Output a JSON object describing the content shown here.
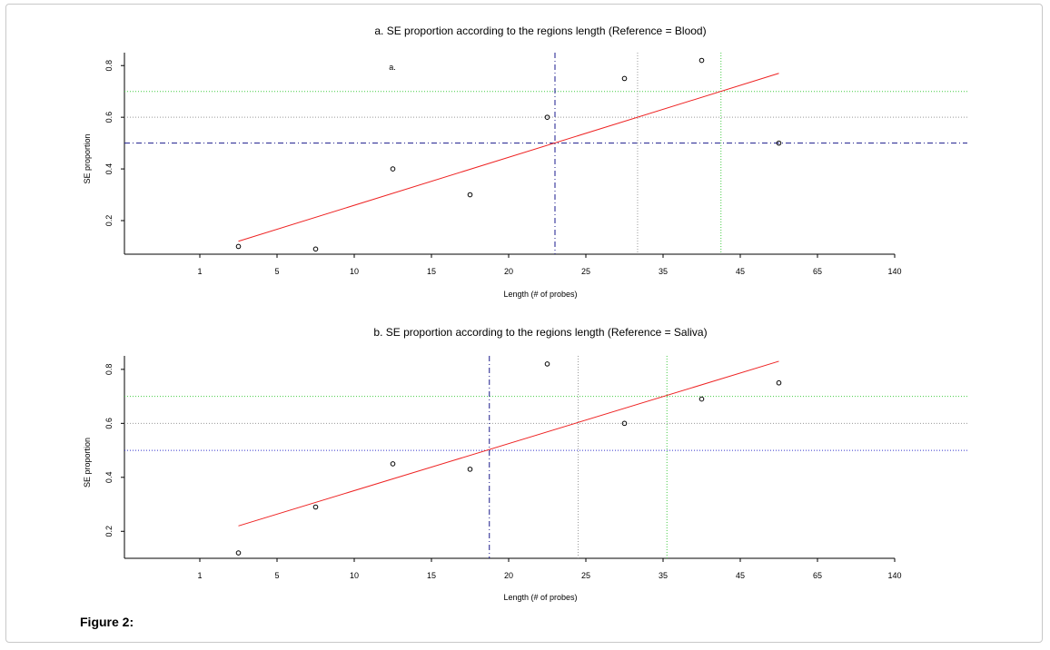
{
  "figure_caption": "Figure 2:",
  "chart_data": [
    {
      "type": "scatter",
      "title": "a. SE proportion according  to  the regions  length  (Reference  = Blood)",
      "xlabel": "Length (# of probes)",
      "ylabel": "SE proportion",
      "annotation": "a.",
      "categories": [
        "1",
        "5",
        "10",
        "15",
        "20",
        "25",
        "35",
        "45",
        "65",
        "140"
      ],
      "yticks": [
        0.2,
        0.4,
        0.6,
        0.8
      ],
      "ylim": [
        0.07,
        0.85
      ],
      "x": [
        1.5,
        2.5,
        3.5,
        4.5,
        5.5,
        6.5,
        7.5,
        8.5
      ],
      "y": [
        0.1,
        0.09,
        0.4,
        0.3,
        0.6,
        0.75,
        0.82,
        0.5
      ],
      "fit": {
        "x": [
          1.5,
          8.5
        ],
        "y": [
          0.12,
          0.77
        ]
      },
      "vlines": [
        {
          "x": 5.6,
          "color": "#1a1a8c",
          "style": "dashdot"
        },
        {
          "x": 6.67,
          "color": "#999999",
          "style": "dotted"
        },
        {
          "x": 7.75,
          "color": "#44cc44",
          "style": "dotted"
        }
      ],
      "hlines": [
        {
          "y": 0.5,
          "color": "#1a1a8c",
          "style": "dashdot"
        },
        {
          "y": 0.6,
          "color": "#999999",
          "style": "dotted"
        },
        {
          "y": 0.7,
          "color": "#44cc44",
          "style": "dotted"
        }
      ],
      "fit_color": "#ee2222",
      "grid": false
    },
    {
      "type": "scatter",
      "title": "b. SE proportion according  to  the regions  length  (Reference  = Saliva)",
      "xlabel": "Length (# of probes)",
      "ylabel": "SE proportion",
      "annotation": "",
      "categories": [
        "1",
        "5",
        "10",
        "15",
        "20",
        "25",
        "35",
        "45",
        "65",
        "140"
      ],
      "yticks": [
        0.2,
        0.4,
        0.6,
        0.8
      ],
      "ylim": [
        0.1,
        0.85
      ],
      "x": [
        1.5,
        2.5,
        3.5,
        4.5,
        5.5,
        6.5,
        7.5,
        8.5
      ],
      "y": [
        0.12,
        0.29,
        0.45,
        0.43,
        0.82,
        0.6,
        0.69,
        0.75
      ],
      "fit": {
        "x": [
          1.5,
          8.5
        ],
        "y": [
          0.22,
          0.83
        ]
      },
      "vlines": [
        {
          "x": 4.75,
          "color": "#1a1a8c",
          "style": "dashdot"
        },
        {
          "x": 5.9,
          "color": "#999999",
          "style": "dotted"
        },
        {
          "x": 7.05,
          "color": "#44cc44",
          "style": "dotted"
        }
      ],
      "hlines": [
        {
          "y": 0.5,
          "color": "#3333cc",
          "style": "dotted"
        },
        {
          "y": 0.6,
          "color": "#999999",
          "style": "dotted"
        },
        {
          "y": 0.7,
          "color": "#44cc44",
          "style": "dotted"
        }
      ],
      "fit_color": "#ee2222",
      "grid": false
    }
  ]
}
